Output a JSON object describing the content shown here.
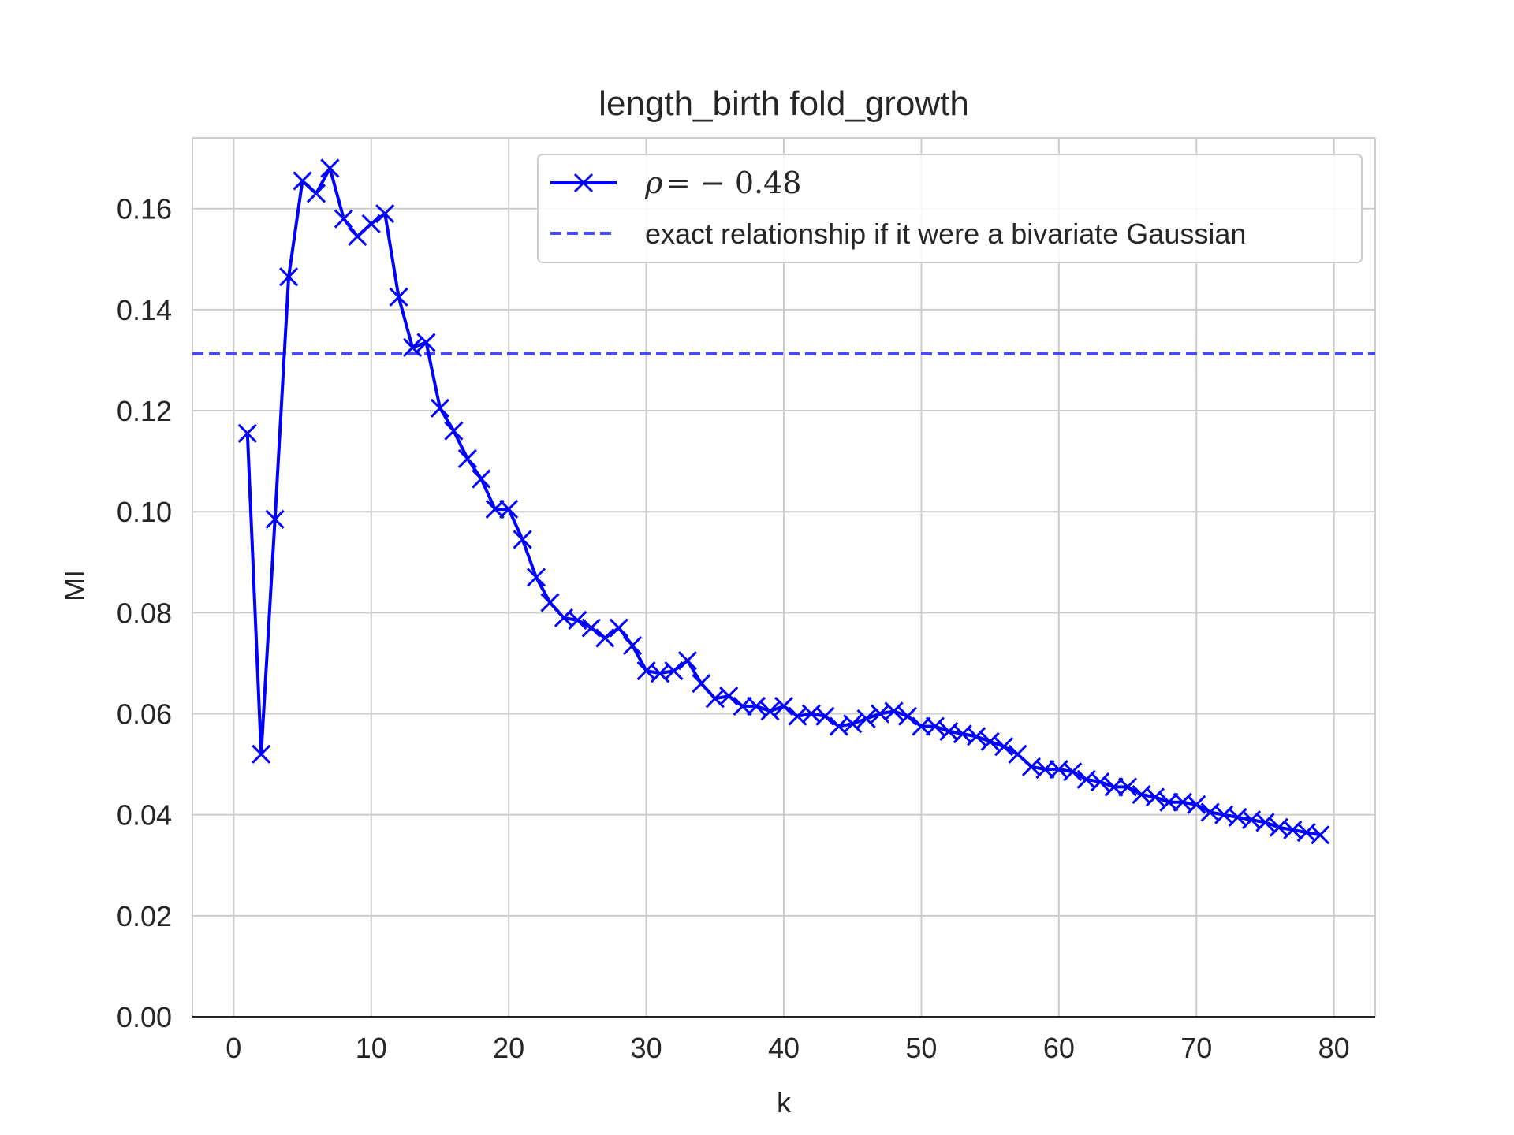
{
  "chart_data": {
    "type": "line",
    "title": "length_birth fold_growth",
    "xlabel": "k",
    "ylabel": "MI",
    "xlim": [
      -3,
      83
    ],
    "ylim": [
      0,
      0.174
    ],
    "grid": true,
    "legend_position": "top-right",
    "xticks": [
      0,
      10,
      20,
      30,
      40,
      50,
      60,
      70,
      80
    ],
    "xtick_labels": [
      "0",
      "10",
      "20",
      "30",
      "40",
      "50",
      "60",
      "70",
      "80"
    ],
    "yticks": [
      0,
      0.02,
      0.04,
      0.06,
      0.08,
      0.1,
      0.12,
      0.14,
      0.16
    ],
    "ytick_labels": [
      "0.00",
      "0.02",
      "0.04",
      "0.06",
      "0.08",
      "0.10",
      "0.12",
      "0.14",
      "0.16"
    ],
    "series": [
      {
        "name": "ρ = − 0.48",
        "legend_symbol": "ρ",
        "legend_value": "= − 0.48",
        "color": "#0000ff",
        "marker": "x",
        "x": [
          1,
          2,
          3,
          4,
          5,
          6,
          7,
          8,
          9,
          10,
          11,
          12,
          13,
          14,
          15,
          16,
          17,
          18,
          19,
          20,
          21,
          22,
          23,
          24,
          25,
          26,
          27,
          28,
          29,
          30,
          31,
          32,
          33,
          34,
          35,
          36,
          37,
          38,
          39,
          40,
          41,
          42,
          43,
          44,
          45,
          46,
          47,
          48,
          49,
          50,
          51,
          52,
          53,
          54,
          55,
          56,
          57,
          58,
          59,
          60,
          61,
          62,
          63,
          64,
          65,
          66,
          67,
          68,
          69,
          70,
          71,
          72,
          73,
          74,
          75,
          76,
          77,
          78,
          79
        ],
        "y": [
          0.1155,
          0.052,
          0.0985,
          0.1465,
          0.1655,
          0.163,
          0.168,
          0.158,
          0.1545,
          0.157,
          0.159,
          0.1425,
          0.1325,
          0.1335,
          0.1205,
          0.116,
          0.1105,
          0.1065,
          0.1005,
          0.1005,
          0.0945,
          0.087,
          0.082,
          0.079,
          0.0785,
          0.077,
          0.075,
          0.077,
          0.0735,
          0.0685,
          0.068,
          0.0685,
          0.0705,
          0.066,
          0.063,
          0.0635,
          0.0615,
          0.0615,
          0.0605,
          0.0615,
          0.0595,
          0.06,
          0.0595,
          0.0575,
          0.058,
          0.059,
          0.06,
          0.0605,
          0.0595,
          0.0575,
          0.0575,
          0.0565,
          0.056,
          0.0555,
          0.0545,
          0.0535,
          0.052,
          0.0495,
          0.049,
          0.049,
          0.0485,
          0.047,
          0.0465,
          0.0455,
          0.0455,
          0.044,
          0.0435,
          0.0425,
          0.0425,
          0.042,
          0.0405,
          0.04,
          0.0395,
          0.039,
          0.0385,
          0.0375,
          0.037,
          0.0365,
          0.036
        ]
      },
      {
        "name": "exact relationship if it were a bivariate Gaussian",
        "color": "#4848ff",
        "style": "dashed",
        "horizontal_line_y": 0.1313
      }
    ]
  }
}
